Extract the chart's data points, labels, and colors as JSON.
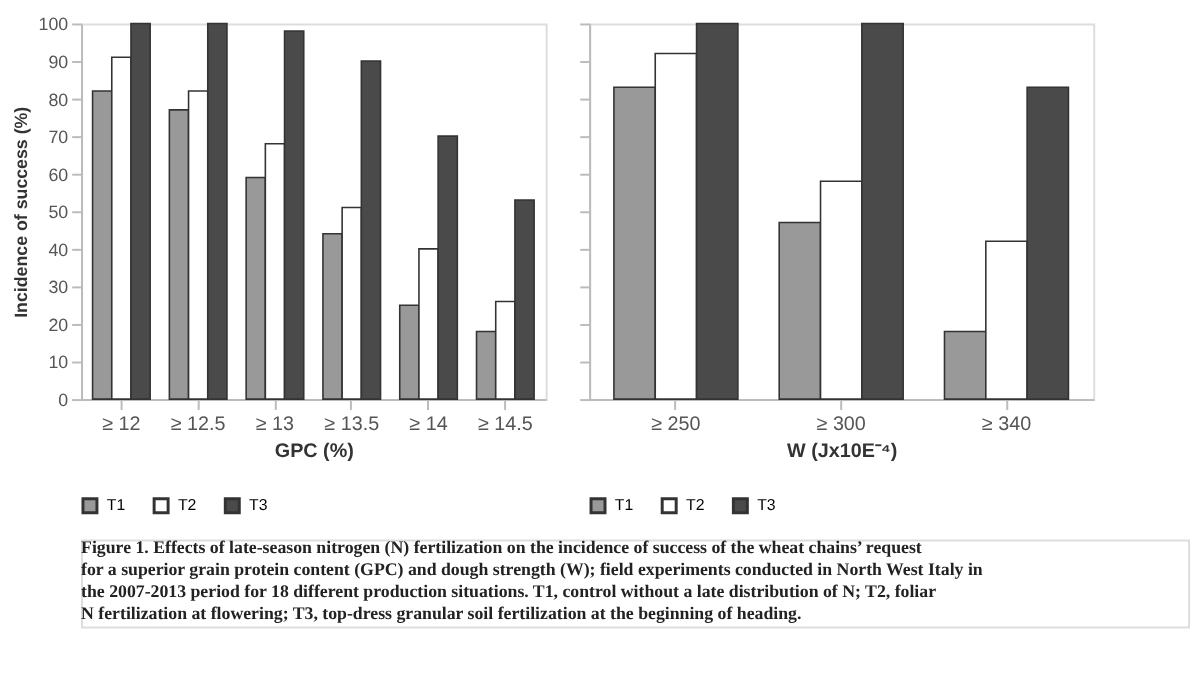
{
  "chart_data": [
    {
      "type": "bar",
      "categories": [
        "≥ 12",
        "≥ 12.5",
        "≥ 13",
        "≥ 13.5",
        "≥ 14",
        "≥ 14.5"
      ],
      "xlabel": "GPC (%)",
      "ylabel": "Incidence of success (%)",
      "ylim": [
        0,
        100
      ],
      "yticks": [
        0,
        10,
        20,
        30,
        40,
        50,
        60,
        70,
        80,
        90,
        100
      ],
      "grid": false,
      "legend": "bottom",
      "series": [
        {
          "name": "T1",
          "color": "#999999",
          "values": [
            82,
            77,
            59,
            44,
            25,
            18
          ]
        },
        {
          "name": "T2",
          "color": "#ffffff",
          "values": [
            91,
            82,
            68,
            51,
            40,
            26
          ]
        },
        {
          "name": "T3",
          "color": "#4a4a4a",
          "values": [
            100,
            100,
            98,
            90,
            70,
            53
          ]
        }
      ],
      "annotations": [
        "Figure 1. Effects of late-season nitrogen (N) fertilization on the incidence of success of the wheat chains’ request for a superior grain protein content (GPC) and dough strength (W); field experiments conducted in North West Italy in the 2007-2013 period for 18 different production situations. T1, control without a late distribution of N; T2, foliar N fertilization at flowering; T3, top-dress granular soil fertilization at the beginning of heading."
      ]
    },
    {
      "type": "bar",
      "categories": [
        "≥ 250",
        "≥ 300",
        "≥ 340"
      ],
      "xlabel": "W (Jx10E⁻⁴)",
      "ylim": [
        0,
        100
      ],
      "yticks": [
        0,
        10,
        20,
        30,
        40,
        50,
        60,
        70,
        80,
        90,
        100
      ],
      "grid": false,
      "legend": "bottom",
      "tick_labels": "x",
      "series": [
        {
          "name": "T1",
          "color": "#999999",
          "values": [
            83,
            47,
            18
          ]
        },
        {
          "name": "T2",
          "color": "#ffffff",
          "values": [
            92,
            58,
            42
          ]
        },
        {
          "name": "T3",
          "color": "#4a4a4a",
          "values": [
            100,
            100,
            83
          ]
        }
      ]
    }
  ]
}
